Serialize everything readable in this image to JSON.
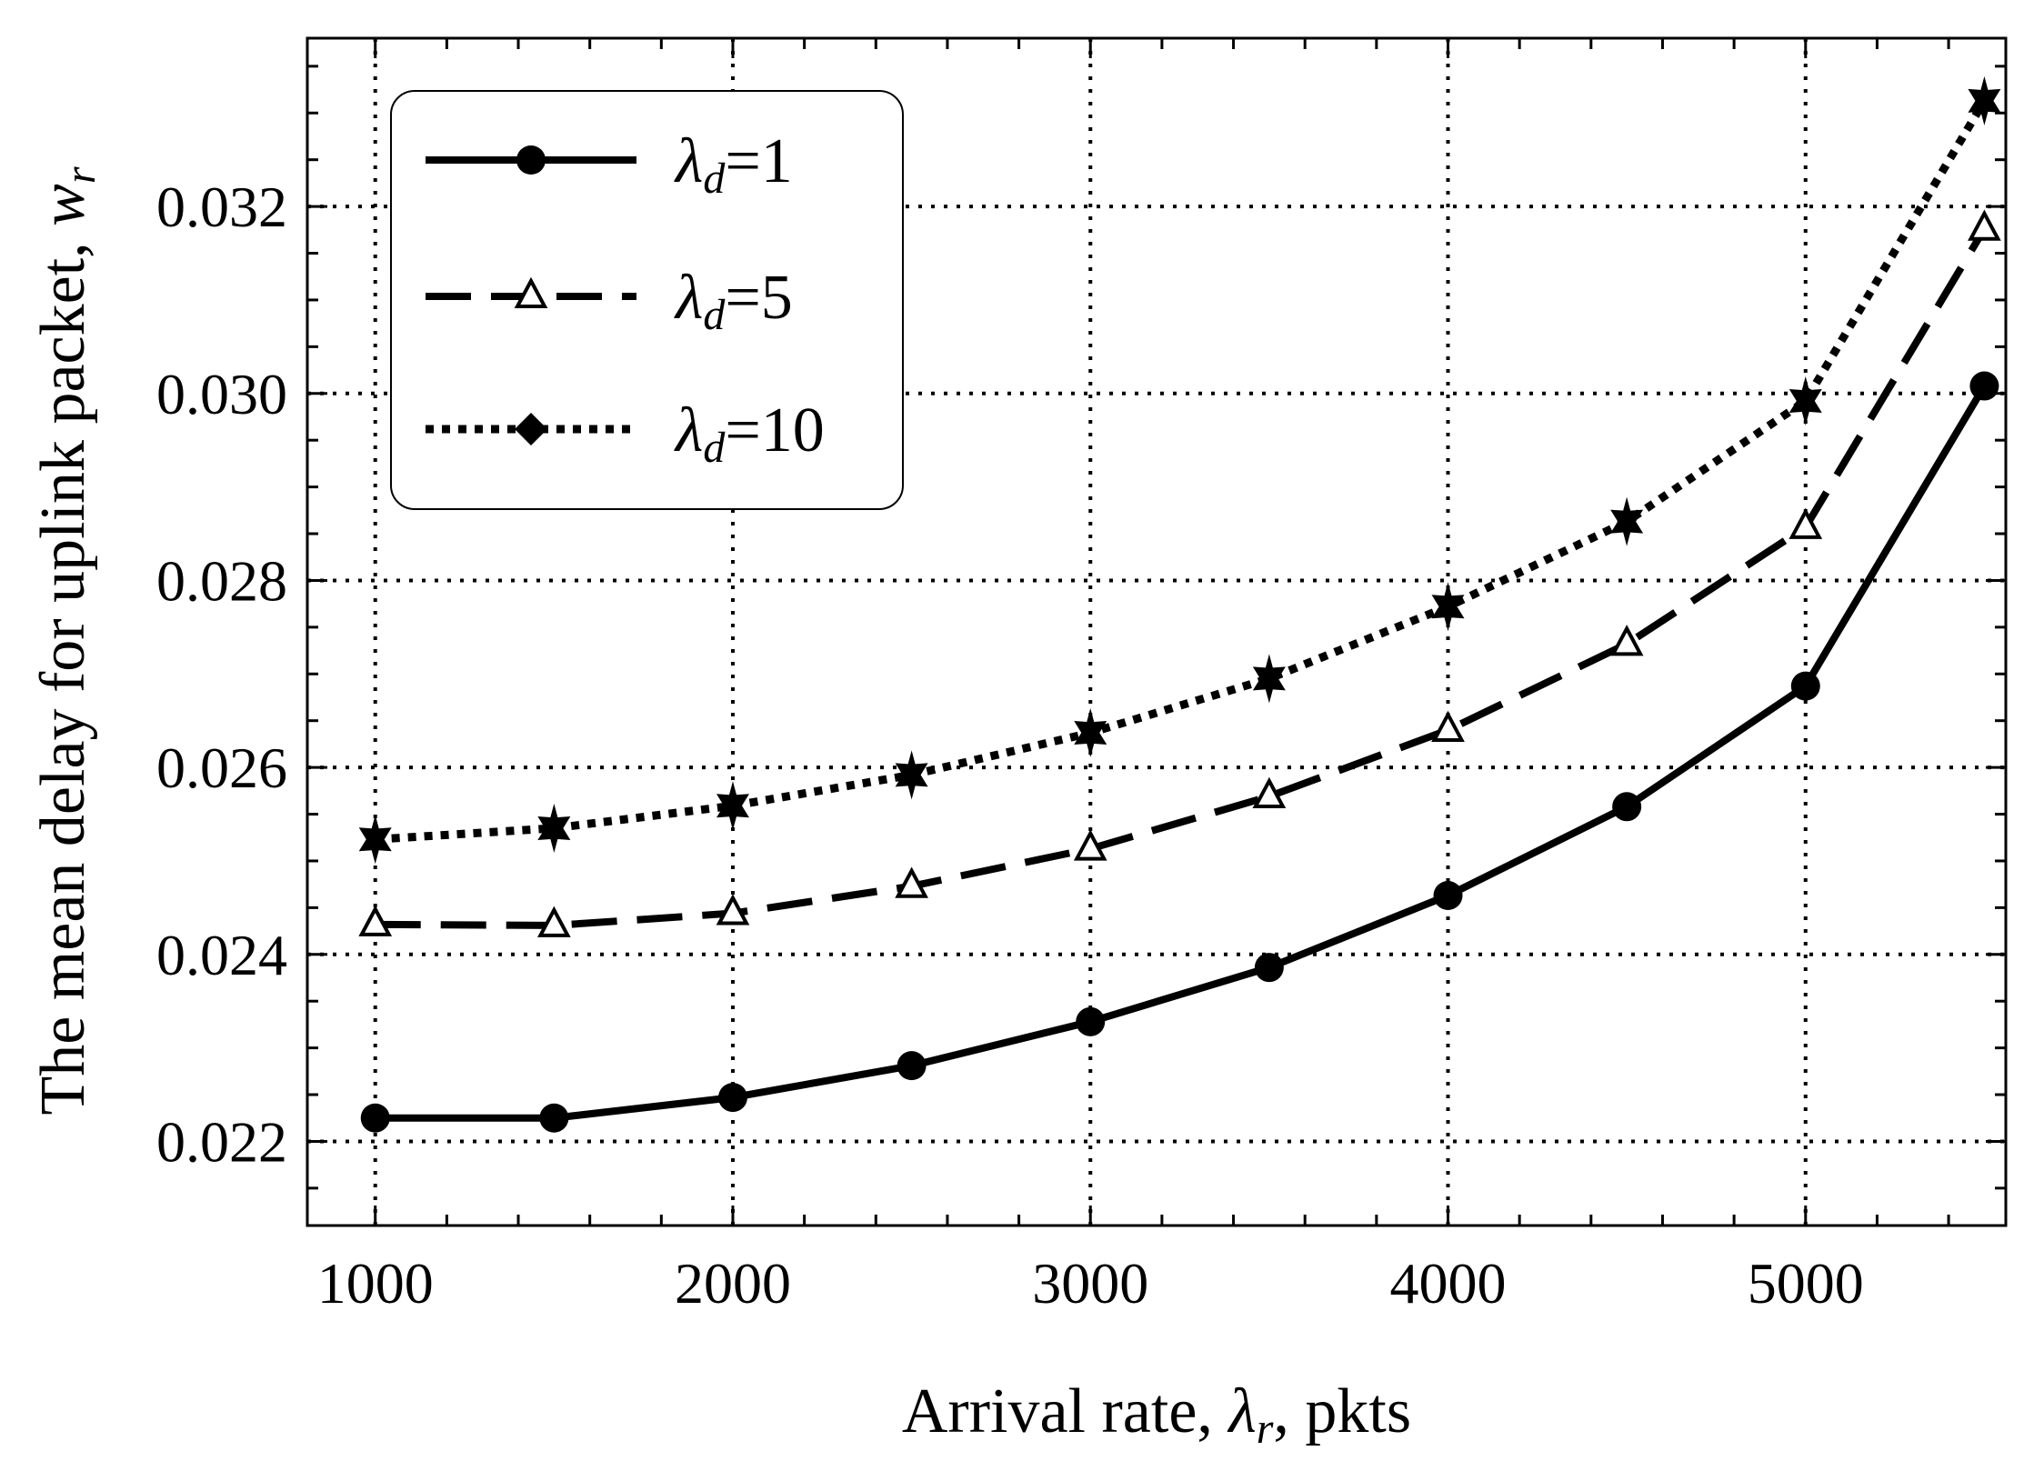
{
  "chart_data": {
    "type": "line",
    "title": "",
    "xlabel": {
      "prefix": "Arrival rate, ",
      "symbol": "λ",
      "sub": "r",
      "suffix": ", pkts"
    },
    "ylabel": {
      "prefix": "The mean delay for uplink packet, ",
      "symbol": "w",
      "sub": "r"
    },
    "xlim": [
      810,
      5560
    ],
    "ylim": [
      0.0211,
      0.0338
    ],
    "x_ticks": [
      1000,
      2000,
      3000,
      4000,
      5000
    ],
    "x_tick_labels": [
      "1000",
      "2000",
      "3000",
      "4000",
      "5000"
    ],
    "y_ticks": [
      0.022,
      0.024,
      0.026,
      0.028,
      0.03,
      0.032
    ],
    "y_tick_labels": [
      "0.022",
      "0.024",
      "0.026",
      "0.028",
      "0.030",
      "0.032"
    ],
    "grid": true,
    "legend_position": "top-left",
    "x": [
      1000,
      1500,
      2000,
      2500,
      3000,
      3500,
      4000,
      4500,
      5000,
      5500
    ],
    "series": [
      {
        "name": "λd=1",
        "symbol": "λ",
        "sub": "d",
        "value_text": "=1",
        "line": "solid",
        "marker": "circle",
        "values": [
          0.02225,
          0.02225,
          0.02247,
          0.02281,
          0.02328,
          0.02386,
          0.02463,
          0.02558,
          0.02687,
          0.03008
        ]
      },
      {
        "name": "λd=5",
        "symbol": "λ",
        "sub": "d",
        "value_text": "=5",
        "line": "dashed",
        "marker": "triangle-open",
        "values": [
          0.02432,
          0.02431,
          0.02444,
          0.02473,
          0.02513,
          0.02569,
          0.0264,
          0.02732,
          0.02857,
          0.03176
        ]
      },
      {
        "name": "λd=10",
        "symbol": "λ",
        "sub": "d",
        "value_text": "=10",
        "line": "dotted",
        "marker": "diamond-plus",
        "values": [
          0.02523,
          0.02535,
          0.02559,
          0.02592,
          0.02637,
          0.02695,
          0.02772,
          0.02863,
          0.02992,
          0.03313
        ]
      }
    ]
  }
}
